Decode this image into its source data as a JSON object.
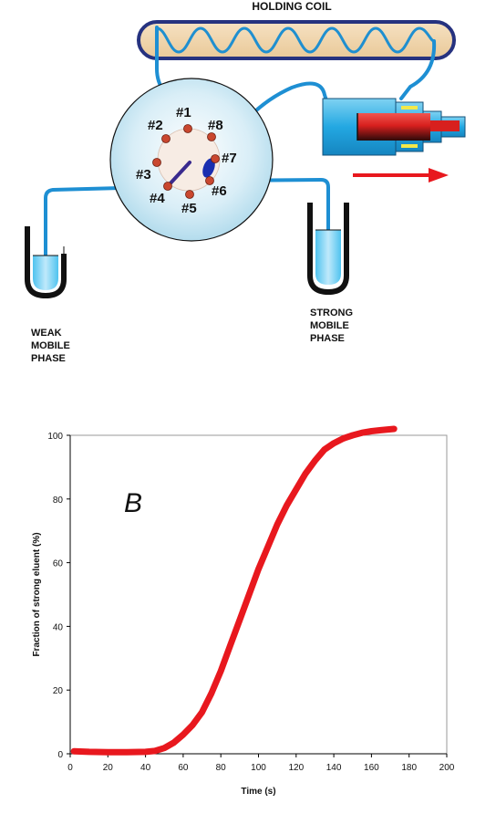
{
  "diagram": {
    "holding_coil_label": "HOLDING COIL",
    "ports": [
      "#1",
      "#2",
      "#3",
      "#4",
      "#5",
      "#6",
      "#7",
      "#8"
    ],
    "weak_label_lines": [
      "WEAK",
      "MOBILE",
      "PHASE"
    ],
    "strong_label_lines": [
      "STRONG",
      "MOBILE",
      "PHASE"
    ]
  },
  "chart_data": {
    "type": "line",
    "panel_label": "B",
    "xlabel": "Time (s)",
    "ylabel": "Fraction of strong eluent (%)",
    "xlim": [
      0,
      200
    ],
    "ylim": [
      0,
      100
    ],
    "xticks": [
      0,
      20,
      40,
      60,
      80,
      100,
      120,
      140,
      160,
      180,
      200
    ],
    "yticks": [
      0,
      20,
      40,
      60,
      80,
      100
    ],
    "legend": "none",
    "grid": false,
    "series": [
      {
        "color": "#e8181e",
        "x": [
          2,
          10,
          20,
          30,
          40,
          45,
          50,
          55,
          60,
          65,
          70,
          75,
          80,
          85,
          90,
          95,
          100,
          105,
          110,
          115,
          120,
          125,
          130,
          135,
          140,
          145,
          150,
          155,
          160,
          165,
          172
        ],
        "y": [
          0.8,
          0.6,
          0.5,
          0.5,
          0.6,
          0.9,
          1.8,
          3.5,
          6,
          9,
          13,
          19,
          26,
          34,
          42,
          50,
          58,
          65,
          72,
          78,
          83,
          88,
          92,
          95.5,
          97.5,
          99,
          100,
          100.8,
          101.3,
          101.6,
          102
        ]
      }
    ]
  }
}
